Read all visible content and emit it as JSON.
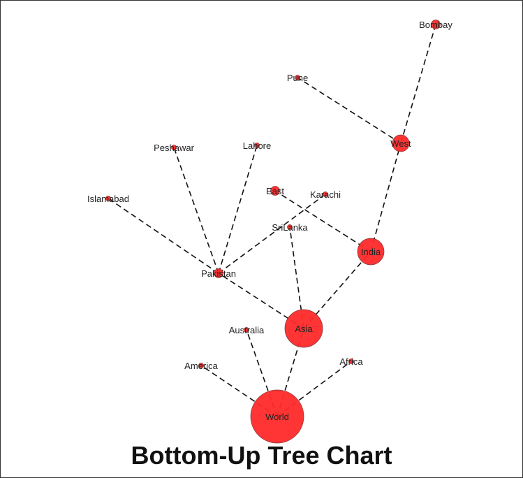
{
  "chart_data": {
    "type": "tree",
    "title": "Bottom-Up Tree Chart",
    "node_color": "#ff2a2a",
    "edge_style": "dashed",
    "edge_color": "#111111",
    "nodes": [
      {
        "id": "world",
        "label": "World",
        "size": 6
      },
      {
        "id": "asia",
        "label": "Asia",
        "size": 4
      },
      {
        "id": "india",
        "label": "India",
        "size": 3
      },
      {
        "id": "west",
        "label": "West",
        "size": 2
      },
      {
        "id": "pakistan",
        "label": "Pakistan",
        "size": 1
      },
      {
        "id": "bombay",
        "label": "Bombay",
        "size": 1
      },
      {
        "id": "pune",
        "label": "Pune",
        "size": 0
      },
      {
        "id": "east",
        "label": "East",
        "size": 1
      },
      {
        "id": "srilanka",
        "label": "SriLanka",
        "size": 0
      },
      {
        "id": "karachi",
        "label": "Karachi",
        "size": 0
      },
      {
        "id": "lahore",
        "label": "Lahore",
        "size": 0
      },
      {
        "id": "peshawar",
        "label": "Peshawar",
        "size": 0
      },
      {
        "id": "islamabad",
        "label": "Islamabad",
        "size": 0
      },
      {
        "id": "australia",
        "label": "Australia",
        "size": 0
      },
      {
        "id": "america",
        "label": "America",
        "size": 0
      },
      {
        "id": "africa",
        "label": "Africa",
        "size": 0
      }
    ],
    "edges": [
      [
        "world",
        "asia"
      ],
      [
        "world",
        "australia"
      ],
      [
        "world",
        "america"
      ],
      [
        "world",
        "africa"
      ],
      [
        "asia",
        "india"
      ],
      [
        "asia",
        "pakistan"
      ],
      [
        "asia",
        "srilanka"
      ],
      [
        "india",
        "west"
      ],
      [
        "india",
        "east"
      ],
      [
        "west",
        "bombay"
      ],
      [
        "west",
        "pune"
      ],
      [
        "pakistan",
        "karachi"
      ],
      [
        "pakistan",
        "lahore"
      ],
      [
        "pakistan",
        "peshawar"
      ],
      [
        "pakistan",
        "islamabad"
      ]
    ]
  }
}
